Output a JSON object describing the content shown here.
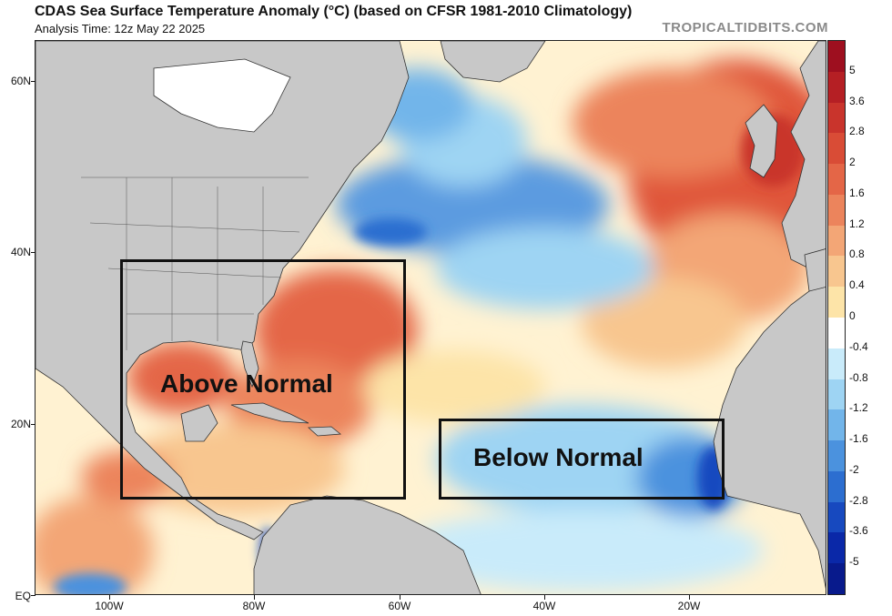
{
  "header": {
    "title": "CDAS Sea Surface Temperature Anomaly (°C) (based on CFSR 1981-2010 Climatology)",
    "analysis_time": "Analysis Time: 12z May 22 2025",
    "watermark": "TROPICALTIDBITS.COM"
  },
  "axes": {
    "lat_labels": [
      "60N",
      "40N",
      "20N",
      "EQ"
    ],
    "lon_labels": [
      "100W",
      "80W",
      "60W",
      "40W",
      "20W"
    ]
  },
  "colorbar": {
    "labels": [
      "5",
      "3.6",
      "2.8",
      "2",
      "1.6",
      "1.2",
      "0.8",
      "0.4",
      "0",
      "-0.4",
      "-0.8",
      "-1.2",
      "-1.6",
      "-2",
      "-2.8",
      "-3.6",
      "-5"
    ],
    "colors": [
      "#9e0f1f",
      "#b51f24",
      "#c9342c",
      "#d94c36",
      "#e46647",
      "#ec845c",
      "#f3a676",
      "#f8c68f",
      "#fde4a8",
      "#ffffff",
      "#c9ebfa",
      "#9ed4f3",
      "#72b5ea",
      "#4b92de",
      "#2c6ed0",
      "#1749bf",
      "#0a28a8",
      "#081a8c"
    ]
  },
  "annotations": {
    "above": "Above Normal",
    "below": "Below Normal"
  },
  "colors": {
    "land": "#c8c8c8",
    "warm": "#e8643f",
    "cool": "#5b9be0",
    "ice": "#ffffff"
  }
}
